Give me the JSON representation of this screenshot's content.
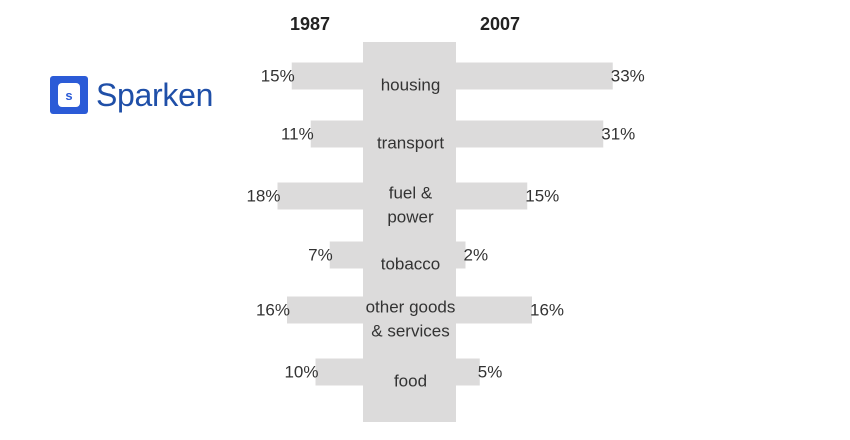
{
  "brand": {
    "name": "Sparken",
    "mark_letter": "s",
    "color": "#2b5bd7"
  },
  "chart_data": {
    "type": "bar",
    "layout": "back-to-back",
    "left_series": {
      "name": "1987"
    },
    "right_series": {
      "name": "2007"
    },
    "bar_color": "#dcdbdb",
    "rows": [
      {
        "lines": [
          "housing"
        ],
        "left": 15,
        "right": 33
      },
      {
        "lines": [
          "transport"
        ],
        "left": 11,
        "right": 31
      },
      {
        "lines": [
          "fuel &",
          "power"
        ],
        "left": 18,
        "right": 15
      },
      {
        "lines": [
          "tobacco"
        ],
        "left": 7,
        "right": 2
      },
      {
        "lines": [
          "other goods",
          "& services"
        ],
        "left": 16,
        "right": 16
      },
      {
        "lines": [
          "food"
        ],
        "left": 10,
        "right": 5
      }
    ],
    "value_suffix": "%"
  }
}
